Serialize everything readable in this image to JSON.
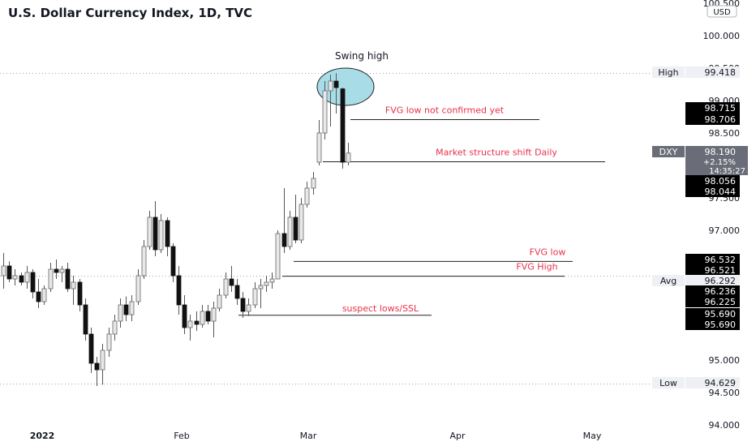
{
  "title": "U.S. Dollar Currency Index, 1D, TVC",
  "currency": "USD",
  "chart_data": {
    "type": "candlestick",
    "y_ticks": [
      "100.500",
      "100.000",
      "99.500",
      "99.000",
      "98.500",
      "97.500",
      "97.000",
      "95.000",
      "94.500",
      "94.000"
    ],
    "x_ticks": [
      "2022",
      "Feb",
      "Mar",
      "Apr",
      "May"
    ],
    "ylim": [
      93.9,
      100.6
    ],
    "grid": false,
    "candles": [
      {
        "o": 96.3,
        "h": 96.65,
        "l": 96.1,
        "c": 96.45
      },
      {
        "o": 96.45,
        "h": 96.52,
        "l": 96.2,
        "c": 96.25
      },
      {
        "o": 96.25,
        "h": 96.4,
        "l": 96.15,
        "c": 96.3
      },
      {
        "o": 96.3,
        "h": 96.35,
        "l": 96.15,
        "c": 96.2
      },
      {
        "o": 96.2,
        "h": 96.45,
        "l": 96.1,
        "c": 96.35
      },
      {
        "o": 96.35,
        "h": 96.4,
        "l": 95.95,
        "c": 96.05
      },
      {
        "o": 96.05,
        "h": 96.25,
        "l": 95.8,
        "c": 95.9
      },
      {
        "o": 95.9,
        "h": 96.15,
        "l": 95.85,
        "c": 96.1
      },
      {
        "o": 96.1,
        "h": 96.5,
        "l": 96.05,
        "c": 96.4
      },
      {
        "o": 96.4,
        "h": 96.55,
        "l": 96.25,
        "c": 96.35
      },
      {
        "o": 96.35,
        "h": 96.45,
        "l": 96.2,
        "c": 96.4
      },
      {
        "o": 96.4,
        "h": 96.5,
        "l": 96.05,
        "c": 96.1
      },
      {
        "o": 96.1,
        "h": 96.3,
        "l": 95.85,
        "c": 96.2
      },
      {
        "o": 96.2,
        "h": 96.25,
        "l": 95.75,
        "c": 95.85
      },
      {
        "o": 95.85,
        "h": 95.95,
        "l": 95.3,
        "c": 95.4
      },
      {
        "o": 95.4,
        "h": 95.5,
        "l": 94.8,
        "c": 94.95
      },
      {
        "o": 94.95,
        "h": 95.05,
        "l": 94.6,
        "c": 94.85
      },
      {
        "o": 94.85,
        "h": 95.25,
        "l": 94.62,
        "c": 95.15
      },
      {
        "o": 95.15,
        "h": 95.5,
        "l": 95.05,
        "c": 95.4
      },
      {
        "o": 95.4,
        "h": 95.7,
        "l": 95.3,
        "c": 95.6
      },
      {
        "o": 95.6,
        "h": 95.95,
        "l": 95.5,
        "c": 95.85
      },
      {
        "o": 95.85,
        "h": 95.98,
        "l": 95.6,
        "c": 95.7
      },
      {
        "o": 95.7,
        "h": 96.0,
        "l": 95.6,
        "c": 95.9
      },
      {
        "o": 95.9,
        "h": 96.4,
        "l": 95.85,
        "c": 96.3
      },
      {
        "o": 96.3,
        "h": 96.85,
        "l": 96.25,
        "c": 96.75
      },
      {
        "o": 96.75,
        "h": 97.3,
        "l": 96.7,
        "c": 97.2
      },
      {
        "o": 97.2,
        "h": 97.45,
        "l": 96.6,
        "c": 96.7
      },
      {
        "o": 96.7,
        "h": 97.25,
        "l": 96.65,
        "c": 97.15
      },
      {
        "o": 97.15,
        "h": 97.2,
        "l": 96.6,
        "c": 96.75
      },
      {
        "o": 96.75,
        "h": 96.8,
        "l": 96.2,
        "c": 96.3
      },
      {
        "o": 96.3,
        "h": 96.45,
        "l": 95.7,
        "c": 95.85
      },
      {
        "o": 95.85,
        "h": 96.0,
        "l": 95.4,
        "c": 95.5
      },
      {
        "o": 95.5,
        "h": 95.7,
        "l": 95.3,
        "c": 95.6
      },
      {
        "o": 95.6,
        "h": 95.75,
        "l": 95.45,
        "c": 95.55
      },
      {
        "o": 95.55,
        "h": 95.85,
        "l": 95.5,
        "c": 95.75
      },
      {
        "o": 95.75,
        "h": 95.85,
        "l": 95.55,
        "c": 95.6
      },
      {
        "o": 95.6,
        "h": 95.9,
        "l": 95.35,
        "c": 95.8
      },
      {
        "o": 95.8,
        "h": 96.1,
        "l": 95.75,
        "c": 96.0
      },
      {
        "o": 96.0,
        "h": 96.35,
        "l": 95.95,
        "c": 96.25
      },
      {
        "o": 96.25,
        "h": 96.45,
        "l": 96.05,
        "c": 96.15
      },
      {
        "o": 96.15,
        "h": 96.25,
        "l": 95.85,
        "c": 95.95
      },
      {
        "o": 95.95,
        "h": 96.05,
        "l": 95.65,
        "c": 95.75
      },
      {
        "o": 95.75,
        "h": 95.95,
        "l": 95.68,
        "c": 95.85
      },
      {
        "o": 95.85,
        "h": 96.2,
        "l": 95.8,
        "c": 96.1
      },
      {
        "o": 96.1,
        "h": 96.25,
        "l": 95.8,
        "c": 96.15
      },
      {
        "o": 96.15,
        "h": 96.3,
        "l": 96.05,
        "c": 96.2
      },
      {
        "o": 96.2,
        "h": 96.35,
        "l": 96.1,
        "c": 96.25
      },
      {
        "o": 96.25,
        "h": 97.0,
        "l": 96.25,
        "c": 96.95
      },
      {
        "o": 96.95,
        "h": 97.65,
        "l": 96.65,
        "c": 96.75
      },
      {
        "o": 96.75,
        "h": 97.3,
        "l": 96.7,
        "c": 97.2
      },
      {
        "o": 97.2,
        "h": 97.55,
        "l": 96.8,
        "c": 96.85
      },
      {
        "o": 96.85,
        "h": 97.5,
        "l": 96.8,
        "c": 97.4
      },
      {
        "o": 97.4,
        "h": 97.75,
        "l": 97.35,
        "c": 97.65
      },
      {
        "o": 97.65,
        "h": 97.9,
        "l": 97.55,
        "c": 97.8
      },
      {
        "o": 98.05,
        "h": 98.7,
        "l": 98.0,
        "c": 98.5
      },
      {
        "o": 98.5,
        "h": 99.3,
        "l": 98.4,
        "c": 99.15
      },
      {
        "o": 99.15,
        "h": 99.4,
        "l": 98.6,
        "c": 99.3
      },
      {
        "o": 99.3,
        "h": 99.42,
        "l": 98.8,
        "c": 99.2
      },
      {
        "o": 99.18,
        "h": 99.2,
        "l": 97.95,
        "c": 98.05
      },
      {
        "o": 98.05,
        "h": 98.35,
        "l": 98.0,
        "c": 98.19
      }
    ],
    "annotations": [
      {
        "text": "Swing high"
      },
      {
        "text": "FVG low not confirmed yet",
        "y": 98.706
      },
      {
        "text": "Market structure shift Daily",
        "y": 98.056
      },
      {
        "text": "FVG low",
        "y": 96.521
      },
      {
        "text": "FVG High",
        "y": 96.292
      },
      {
        "text": "suspect lows/SSL",
        "y": 95.69
      }
    ],
    "price_labels": [
      {
        "label": "High",
        "value": "99.418"
      },
      {
        "value": "98.715"
      },
      {
        "value": "98.706"
      },
      {
        "label": "DXY",
        "value": "98.190",
        "change": "+2.15%",
        "timer": "14:35:27"
      },
      {
        "value": "98.056"
      },
      {
        "value": "98.044"
      },
      {
        "value": "96.532"
      },
      {
        "value": "96.521"
      },
      {
        "label": "Avg",
        "value": "96.292"
      },
      {
        "value": "96.236"
      },
      {
        "value": "96.225"
      },
      {
        "value": "95.690"
      },
      {
        "value": "95.690"
      },
      {
        "label": "Low",
        "value": "94.629"
      }
    ]
  },
  "colors": {
    "background": "#ffffff",
    "candle_up": "#e8e8e8",
    "candle_down": "#111111",
    "wick": "#555555",
    "annotation_text": "#e8314a",
    "annotation_line": "#222222",
    "circle_fill": "#a8dde8",
    "circle_stroke": "#222222",
    "dotted_line": "#9aa0a6",
    "label_bg": "#000000",
    "label_text": "#ffffff",
    "tag_bg": "#eef0f3",
    "dxy_bg": "#6a6d78"
  }
}
